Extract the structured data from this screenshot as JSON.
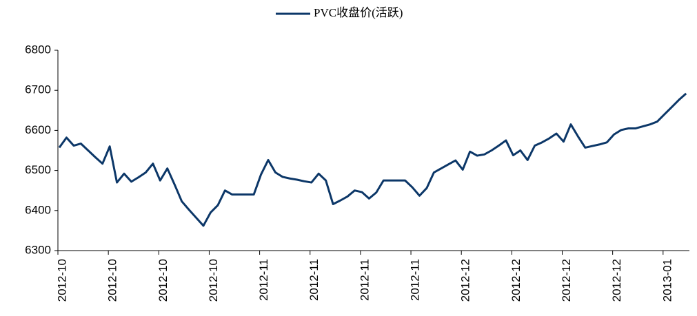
{
  "chart_data": {
    "type": "line",
    "categories": [
      "2012-10",
      null,
      null,
      null,
      null,
      null,
      null,
      "2012-10",
      null,
      null,
      null,
      null,
      null,
      null,
      "2012-10",
      null,
      null,
      null,
      null,
      null,
      null,
      "2012-10",
      null,
      null,
      null,
      null,
      null,
      null,
      "2012-11",
      null,
      null,
      null,
      null,
      null,
      null,
      "2012-11",
      null,
      null,
      null,
      null,
      null,
      null,
      "2012-11",
      null,
      null,
      null,
      null,
      null,
      null,
      "2012-11",
      null,
      null,
      null,
      null,
      null,
      null,
      "2012-12",
      null,
      null,
      null,
      null,
      null,
      null,
      "2012-12",
      null,
      null,
      null,
      null,
      null,
      null,
      "2012-12",
      null,
      null,
      null,
      null,
      null,
      null,
      "2012-12",
      null,
      null,
      null,
      null,
      null,
      null,
      "2013-01",
      null,
      null,
      null
    ],
    "series": [
      {
        "name": "PVC收盘价(活跃)",
        "color": "#0c3768",
        "values": [
          6557,
          6582,
          6562,
          6567,
          6550,
          6533,
          6517,
          6560,
          6470,
          6492,
          6472,
          6483,
          6495,
          6517,
          6475,
          6505,
          6465,
          6423,
          6402,
          6382,
          6362,
          6395,
          6413,
          6450,
          6440,
          6440,
          6440,
          6440,
          6490,
          6526,
          6495,
          6484,
          6480,
          6477,
          6473,
          6470,
          6492,
          6475,
          6416,
          6425,
          6435,
          6450,
          6446,
          6430,
          6445,
          6475,
          6475,
          6475,
          6475,
          6458,
          6437,
          6456,
          6495,
          6505,
          6515,
          6525,
          6502,
          6547,
          6537,
          6540,
          6550,
          6562,
          6575,
          6538,
          6550,
          6526,
          6562,
          6570,
          6580,
          6592,
          6572,
          6615,
          6585,
          6557,
          6561,
          6565,
          6570,
          6590,
          6601,
          6605,
          6605,
          6610,
          6615,
          6622,
          6640,
          6658,
          6676,
          6692
        ]
      }
    ],
    "ylim": [
      6300,
      6800
    ],
    "yticks": [
      6300,
      6400,
      6500,
      6600,
      6700,
      6800
    ],
    "legend": "top"
  }
}
